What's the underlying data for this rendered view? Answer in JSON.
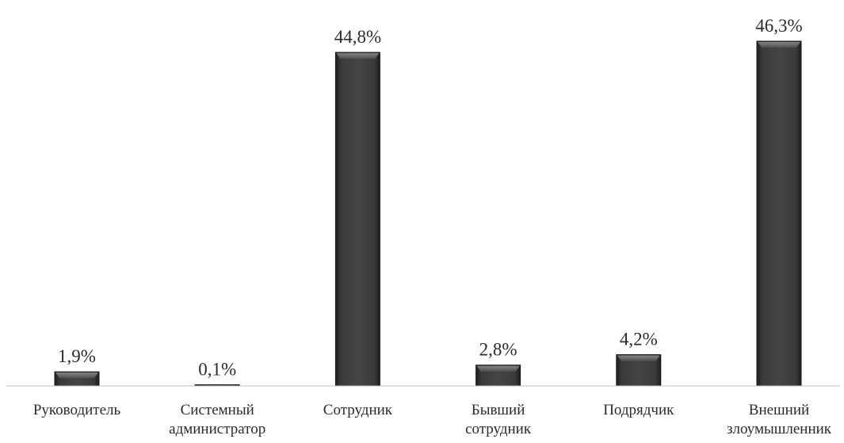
{
  "chart_data": {
    "type": "bar",
    "categories": [
      [
        "Руководитель"
      ],
      [
        "Системный",
        "администратор"
      ],
      [
        "Сотрудник"
      ],
      [
        "Бывший",
        "сотрудник"
      ],
      [
        "Подрядчик"
      ],
      [
        "Внешний",
        "злоумышленник"
      ]
    ],
    "values": [
      1.9,
      0.1,
      44.8,
      2.8,
      4.2,
      46.3
    ],
    "value_labels": [
      "1,9%",
      "0,1%",
      "44,8%",
      "2,8%",
      "4,2%",
      "46,3%"
    ],
    "ylim": [
      0,
      46.3
    ],
    "grid": false,
    "legend": "none",
    "bar_color": "#3b3b3b",
    "axis_color": "#bfbfbf"
  }
}
